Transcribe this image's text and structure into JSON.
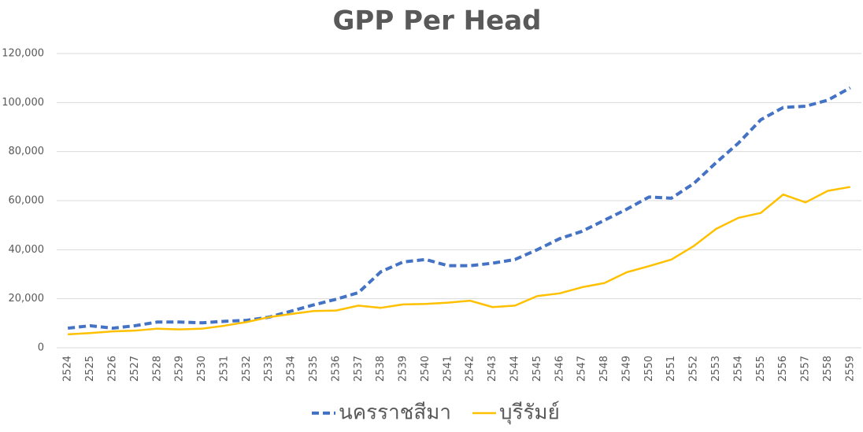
{
  "chart_data": {
    "type": "line",
    "title": "GPP Per Head",
    "categories": [
      "2524",
      "2525",
      "2526",
      "2527",
      "2528",
      "2529",
      "2530",
      "2531",
      "2532",
      "2533",
      "2534",
      "2535",
      "2536",
      "2537",
      "2538",
      "2539",
      "2540",
      "2541",
      "2542",
      "2543",
      "2544",
      "2545",
      "2546",
      "2547",
      "2548",
      "2549",
      "2550",
      "2551",
      "2552",
      "2553",
      "2554",
      "2555",
      "2556",
      "2557",
      "2558",
      "2559"
    ],
    "series": [
      {
        "name": "นครราชสีมา",
        "color": "#4472c4",
        "dashed": true,
        "values": [
          8000,
          9000,
          8000,
          9000,
          10500,
          10500,
          10200,
          10800,
          11200,
          12500,
          15000,
          17500,
          19800,
          22500,
          31000,
          35000,
          36000,
          33500,
          33500,
          34500,
          36000,
          40000,
          44500,
          47500,
          52000,
          56500,
          61500,
          61000,
          67000,
          75500,
          83500,
          93000,
          98000,
          98500,
          101000,
          106000
        ]
      },
      {
        "name": "บุรีรัมย์",
        "color": "#ffc000",
        "dashed": false,
        "values": [
          5500,
          6000,
          6700,
          7000,
          7800,
          7500,
          7800,
          9000,
          10500,
          12500,
          13800,
          15000,
          15200,
          17200,
          16300,
          17700,
          17900,
          18400,
          19200,
          16600,
          17200,
          21100,
          22200,
          24700,
          26400,
          30800,
          33300,
          36000,
          41500,
          48500,
          53000,
          55000,
          62500,
          59300,
          64000,
          65600
        ]
      }
    ],
    "ylim": [
      0,
      120000
    ],
    "yticks": [
      0,
      {
        "value": 20000,
        "label": "20,000"
      },
      {
        "value": 40000,
        "label": "40,000"
      },
      {
        "value": 60000,
        "label": "60,000"
      },
      {
        "value": 80000,
        "label": "80,000"
      },
      {
        "value": 100000,
        "label": "100,000"
      },
      {
        "value": 120000,
        "label": "120,000"
      }
    ],
    "grid": true,
    "legend": "bottom"
  }
}
